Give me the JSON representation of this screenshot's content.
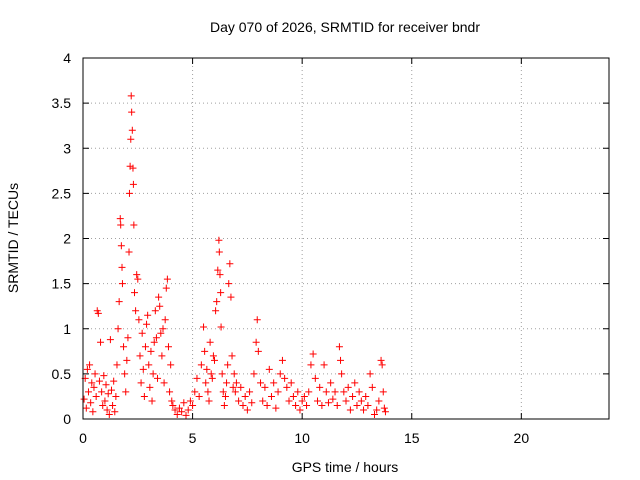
{
  "chart_data": {
    "type": "scatter",
    "title": "Day 070 of 2026, SRMTID for receiver bndr",
    "xlabel": "GPS time / hours",
    "ylabel": "SRMTID / TECUs",
    "xlim": [
      0,
      24
    ],
    "ylim": [
      0,
      4
    ],
    "xticks": [
      0,
      5,
      10,
      15,
      20
    ],
    "xtick_labels": [
      "0",
      "5",
      "10",
      "15",
      "20"
    ],
    "yticks": [
      0,
      0.5,
      1,
      1.5,
      2,
      2.5,
      3,
      3.5,
      4
    ],
    "ytick_labels": [
      "0",
      "0.5",
      "1",
      "1.5",
      "2",
      "2.5",
      "3",
      "3.5",
      "4"
    ],
    "grid": true,
    "marker": "+",
    "color": "#ff0000",
    "series": [
      {
        "name": "SRMTID",
        "points": [
          [
            0.05,
            0.22
          ],
          [
            0.1,
            0.45
          ],
          [
            0.15,
            0.12
          ],
          [
            0.2,
            0.55
          ],
          [
            0.25,
            0.3
          ],
          [
            0.3,
            0.6
          ],
          [
            0.35,
            0.18
          ],
          [
            0.4,
            0.4
          ],
          [
            0.45,
            0.08
          ],
          [
            0.5,
            0.35
          ],
          [
            0.55,
            0.5
          ],
          [
            0.6,
            0.25
          ],
          [
            0.65,
            1.2
          ],
          [
            0.7,
            1.17
          ],
          [
            0.75,
            0.42
          ],
          [
            0.8,
            0.85
          ],
          [
            0.85,
            0.3
          ],
          [
            0.9,
            0.15
          ],
          [
            0.95,
            0.48
          ],
          [
            1.0,
            0.2
          ],
          [
            1.05,
            0.38
          ],
          [
            1.1,
            0.1
          ],
          [
            1.15,
            0.28
          ],
          [
            1.2,
            0.05
          ],
          [
            1.25,
            0.88
          ],
          [
            1.3,
            0.32
          ],
          [
            1.35,
            0.15
          ],
          [
            1.4,
            0.42
          ],
          [
            1.45,
            0.08
          ],
          [
            1.5,
            0.25
          ],
          [
            1.55,
            0.6
          ],
          [
            1.6,
            1.0
          ],
          [
            1.65,
            1.3
          ],
          [
            1.7,
            2.22
          ],
          [
            1.72,
            2.15
          ],
          [
            1.75,
            1.92
          ],
          [
            1.78,
            1.68
          ],
          [
            1.8,
            1.5
          ],
          [
            1.85,
            0.8
          ],
          [
            1.9,
            0.5
          ],
          [
            1.95,
            0.3
          ],
          [
            2.0,
            0.65
          ],
          [
            2.05,
            0.9
          ],
          [
            2.1,
            1.85
          ],
          [
            2.12,
            2.5
          ],
          [
            2.15,
            2.8
          ],
          [
            2.18,
            3.1
          ],
          [
            2.2,
            3.58
          ],
          [
            2.22,
            3.4
          ],
          [
            2.25,
            3.2
          ],
          [
            2.28,
            2.78
          ],
          [
            2.3,
            2.6
          ],
          [
            2.32,
            2.15
          ],
          [
            2.35,
            1.4
          ],
          [
            2.4,
            1.2
          ],
          [
            2.45,
            1.6
          ],
          [
            2.5,
            1.55
          ],
          [
            2.55,
            1.1
          ],
          [
            2.6,
            0.7
          ],
          [
            2.65,
            0.4
          ],
          [
            2.7,
            0.95
          ],
          [
            2.75,
            0.55
          ],
          [
            2.8,
            0.25
          ],
          [
            2.85,
            0.8
          ],
          [
            2.9,
            1.05
          ],
          [
            2.95,
            1.15
          ],
          [
            3.0,
            0.6
          ],
          [
            3.05,
            0.35
          ],
          [
            3.1,
            0.75
          ],
          [
            3.15,
            0.2
          ],
          [
            3.2,
            0.5
          ],
          [
            3.25,
            0.85
          ],
          [
            3.3,
            1.2
          ],
          [
            3.35,
            0.9
          ],
          [
            3.4,
            0.45
          ],
          [
            3.45,
            1.35
          ],
          [
            3.5,
            1.25
          ],
          [
            3.55,
            0.95
          ],
          [
            3.6,
            0.7
          ],
          [
            3.65,
            1.0
          ],
          [
            3.7,
            0.4
          ],
          [
            3.75,
            1.1
          ],
          [
            3.8,
            1.45
          ],
          [
            3.85,
            1.55
          ],
          [
            3.9,
            0.8
          ],
          [
            3.95,
            0.3
          ],
          [
            4.0,
            0.6
          ],
          [
            4.05,
            0.2
          ],
          [
            4.1,
            0.15
          ],
          [
            4.2,
            0.1
          ],
          [
            4.3,
            0.05
          ],
          [
            4.4,
            0.12
          ],
          [
            4.5,
            0.08
          ],
          [
            4.6,
            0.18
          ],
          [
            4.7,
            0.04
          ],
          [
            4.8,
            0.1
          ],
          [
            4.9,
            0.2
          ],
          [
            5.0,
            0.15
          ],
          [
            5.1,
            0.3
          ],
          [
            5.2,
            0.45
          ],
          [
            5.3,
            0.25
          ],
          [
            5.4,
            0.6
          ],
          [
            5.5,
            1.02
          ],
          [
            5.55,
            0.75
          ],
          [
            5.6,
            0.4
          ],
          [
            5.65,
            0.55
          ],
          [
            5.7,
            0.3
          ],
          [
            5.75,
            0.2
          ],
          [
            5.8,
            0.85
          ],
          [
            5.85,
            0.5
          ],
          [
            5.9,
            0.45
          ],
          [
            5.95,
            0.7
          ],
          [
            6.0,
            0.65
          ],
          [
            6.05,
            1.2
          ],
          [
            6.1,
            1.3
          ],
          [
            6.15,
            1.65
          ],
          [
            6.2,
            1.98
          ],
          [
            6.22,
            1.85
          ],
          [
            6.25,
            1.6
          ],
          [
            6.28,
            1.4
          ],
          [
            6.3,
            1.02
          ],
          [
            6.35,
            0.5
          ],
          [
            6.4,
            0.3
          ],
          [
            6.45,
            0.15
          ],
          [
            6.5,
            0.25
          ],
          [
            6.55,
            0.4
          ],
          [
            6.6,
            0.6
          ],
          [
            6.65,
            1.5
          ],
          [
            6.7,
            1.72
          ],
          [
            6.75,
            1.35
          ],
          [
            6.8,
            0.7
          ],
          [
            6.85,
            0.35
          ],
          [
            6.9,
            0.5
          ],
          [
            6.95,
            0.3
          ],
          [
            7.0,
            0.4
          ],
          [
            7.1,
            0.2
          ],
          [
            7.2,
            0.35
          ],
          [
            7.3,
            0.15
          ],
          [
            7.4,
            0.25
          ],
          [
            7.5,
            0.1
          ],
          [
            7.6,
            0.3
          ],
          [
            7.7,
            0.18
          ],
          [
            7.8,
            0.5
          ],
          [
            7.9,
            0.85
          ],
          [
            7.95,
            1.1
          ],
          [
            8.0,
            0.75
          ],
          [
            8.1,
            0.4
          ],
          [
            8.2,
            0.2
          ],
          [
            8.3,
            0.35
          ],
          [
            8.4,
            0.15
          ],
          [
            8.5,
            0.55
          ],
          [
            8.6,
            0.25
          ],
          [
            8.7,
            0.4
          ],
          [
            8.8,
            0.12
          ],
          [
            8.9,
            0.3
          ],
          [
            9.0,
            0.5
          ],
          [
            9.1,
            0.65
          ],
          [
            9.2,
            0.45
          ],
          [
            9.3,
            0.35
          ],
          [
            9.4,
            0.2
          ],
          [
            9.5,
            0.4
          ],
          [
            9.6,
            0.25
          ],
          [
            9.7,
            0.15
          ],
          [
            9.8,
            0.3
          ],
          [
            9.9,
            0.1
          ],
          [
            10.0,
            0.2
          ],
          [
            10.1,
            0.25
          ],
          [
            10.2,
            0.15
          ],
          [
            10.3,
            0.3
          ],
          [
            10.4,
            0.6
          ],
          [
            10.5,
            0.72
          ],
          [
            10.6,
            0.45
          ],
          [
            10.7,
            0.2
          ],
          [
            10.8,
            0.35
          ],
          [
            10.9,
            0.15
          ],
          [
            11.0,
            0.6
          ],
          [
            11.1,
            0.3
          ],
          [
            11.2,
            0.18
          ],
          [
            11.3,
            0.4
          ],
          [
            11.4,
            0.22
          ],
          [
            11.5,
            0.3
          ],
          [
            11.6,
            0.15
          ],
          [
            11.7,
            0.8
          ],
          [
            11.75,
            0.65
          ],
          [
            11.8,
            0.5
          ],
          [
            11.9,
            0.3
          ],
          [
            12.0,
            0.2
          ],
          [
            12.1,
            0.35
          ],
          [
            12.2,
            0.1
          ],
          [
            12.3,
            0.25
          ],
          [
            12.4,
            0.4
          ],
          [
            12.5,
            0.15
          ],
          [
            12.6,
            0.3
          ],
          [
            12.7,
            0.2
          ],
          [
            12.8,
            0.1
          ],
          [
            12.9,
            0.25
          ],
          [
            13.0,
            0.15
          ],
          [
            13.1,
            0.5
          ],
          [
            13.2,
            0.35
          ],
          [
            13.3,
            0.05
          ],
          [
            13.4,
            0.1
          ],
          [
            13.5,
            0.2
          ],
          [
            13.6,
            0.65
          ],
          [
            13.65,
            0.6
          ],
          [
            13.7,
            0.3
          ],
          [
            13.75,
            0.12
          ],
          [
            13.8,
            0.08
          ]
        ]
      }
    ]
  }
}
